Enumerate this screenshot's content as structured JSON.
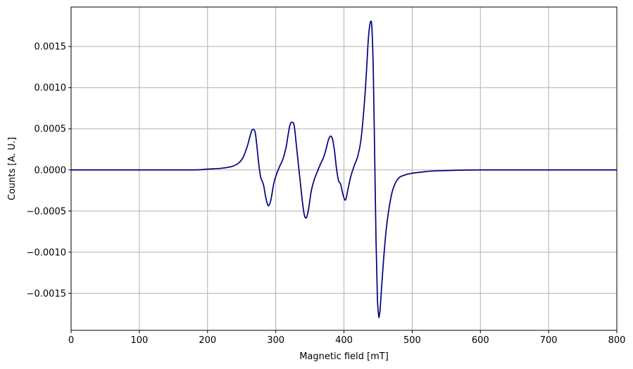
{
  "chart_data": {
    "type": "line",
    "title": "",
    "xlabel": "Magnetic field [mT]",
    "ylabel": "Counts [A. U.]",
    "xlim": [
      0,
      800
    ],
    "ylim": [
      -0.00195,
      0.00198
    ],
    "grid": true,
    "x_ticks": [
      0,
      100,
      200,
      300,
      400,
      500,
      600,
      700,
      800
    ],
    "x_tick_labels": [
      "0",
      "100",
      "200",
      "300",
      "400",
      "500",
      "600",
      "700",
      "800"
    ],
    "y_ticks": [
      0.0015,
      0.001,
      0.0005,
      0.0,
      -0.0005,
      -0.001,
      -0.0015
    ],
    "y_tick_labels": [
      "0.0015",
      "0.0010",
      "0.0005",
      "0.0000",
      "−0.0005",
      "−0.0010",
      "−0.0015"
    ],
    "colors": {
      "line": "#00007f",
      "grid": "#b0b0b0",
      "axes": "#000000"
    },
    "series": [
      {
        "x": [
          0,
          100,
          180,
          200,
          220,
          235,
          245,
          252,
          258,
          262,
          265,
          268,
          270,
          272,
          275,
          278,
          282,
          285,
          288,
          290,
          293,
          297,
          300,
          305,
          310,
          315,
          318,
          321,
          324,
          327,
          330,
          333,
          336,
          339,
          342,
          345,
          348,
          352,
          356,
          360,
          365,
          370,
          374,
          377,
          380,
          383,
          386,
          389,
          392,
          395,
          398,
          401,
          403,
          406,
          410,
          415,
          420,
          425,
          430,
          433,
          436,
          439,
          441,
          443,
          445,
          447,
          449,
          451,
          452,
          453,
          455,
          458,
          462,
          467,
          472,
          480,
          490,
          500,
          510,
          520,
          540,
          600,
          700,
          800
        ],
        "y": [
          0.0,
          0.0,
          0.0,
          1e-05,
          2e-05,
          4e-05,
          8e-05,
          0.00015,
          0.00028,
          0.0004,
          0.00048,
          0.00049,
          0.00045,
          0.00032,
          8e-05,
          -9e-05,
          -0.00018,
          -0.00032,
          -0.00042,
          -0.00043,
          -0.00036,
          -0.00017,
          -8e-05,
          3e-05,
          0.00012,
          0.00027,
          0.00042,
          0.00055,
          0.00058,
          0.00054,
          0.00032,
          8e-05,
          -0.00015,
          -0.00038,
          -0.00055,
          -0.00058,
          -0.00048,
          -0.00026,
          -0.00013,
          -4e-05,
          6e-05,
          0.00015,
          0.00026,
          0.00036,
          0.00041,
          0.00038,
          0.00024,
          2e-05,
          -0.00013,
          -0.00017,
          -0.00028,
          -0.00036,
          -0.00035,
          -0.00023,
          -8e-05,
          5e-05,
          0.00016,
          0.00037,
          0.00082,
          0.0012,
          0.00162,
          0.0018,
          0.00172,
          0.0012,
          0.0002,
          -0.00085,
          -0.00155,
          -0.00178,
          -0.00176,
          -0.0017,
          -0.00145,
          -0.0011,
          -0.00072,
          -0.00042,
          -0.00023,
          -0.0001,
          -6e-05,
          -4e-05,
          -3e-05,
          -2e-05,
          -1e-05,
          0.0,
          0.0,
          0.0
        ]
      }
    ]
  }
}
